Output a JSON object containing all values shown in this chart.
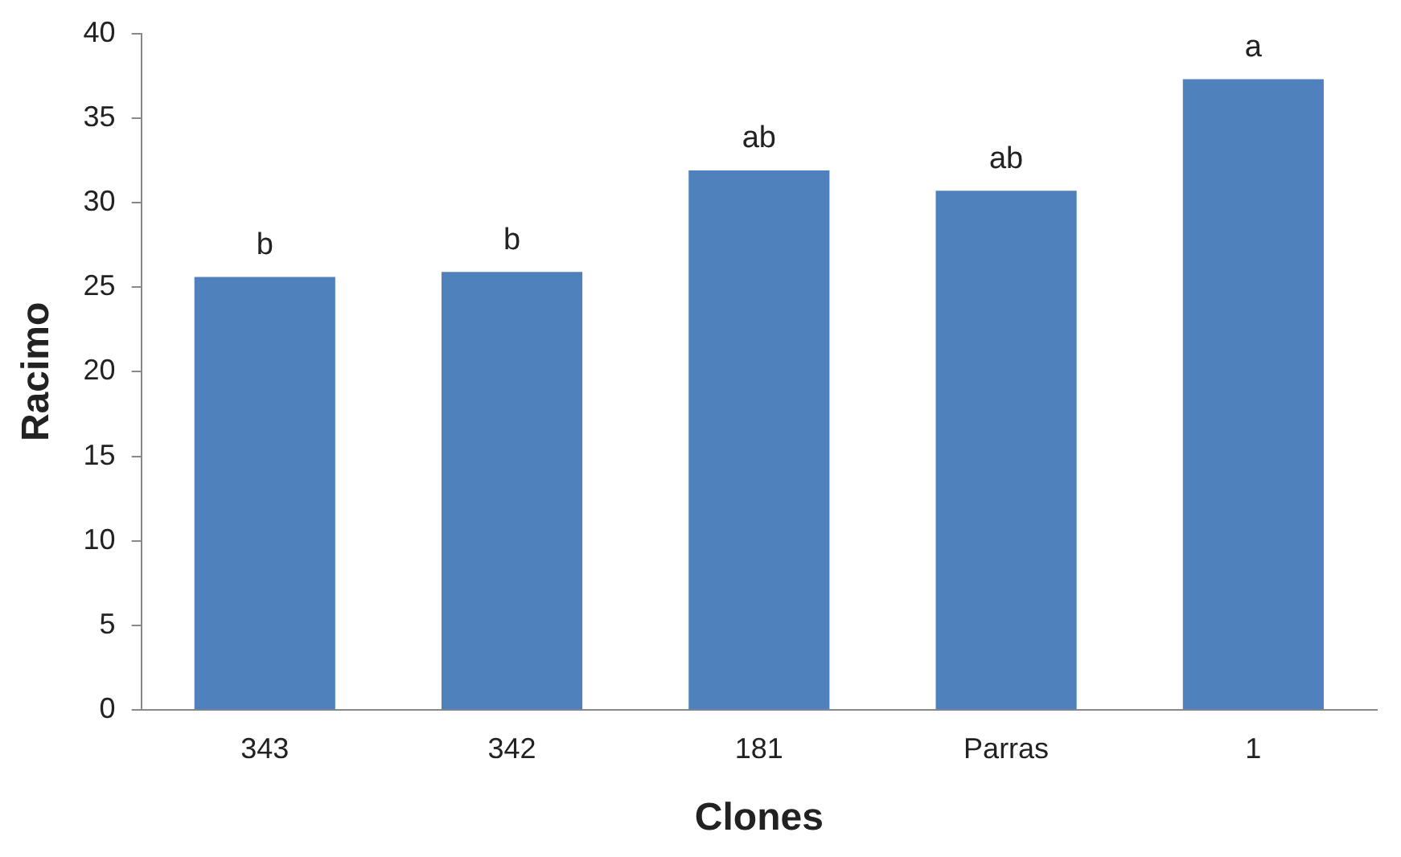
{
  "chart_data": {
    "type": "bar",
    "xlabel": "Clones",
    "ylabel": "Racimo",
    "categories": [
      "343",
      "342",
      "181",
      "Parras",
      "1"
    ],
    "values": [
      25.6,
      25.9,
      31.9,
      30.7,
      37.3
    ],
    "color": "#4f81bd",
    "ylim": [
      0,
      40
    ],
    "yticks": [
      0,
      5,
      10,
      15,
      20,
      25,
      30,
      35,
      40
    ],
    "grid": false,
    "annotations": [
      {
        "text": "b",
        "x": "343",
        "y": 25.6
      },
      {
        "text": "b",
        "x": "342",
        "y": 25.9
      },
      {
        "text": "ab",
        "x": "181",
        "y": 31.9
      },
      {
        "text": "ab",
        "x": "Parras",
        "y": 30.7
      },
      {
        "text": "a",
        "x": "1",
        "y": 37.3
      }
    ]
  }
}
